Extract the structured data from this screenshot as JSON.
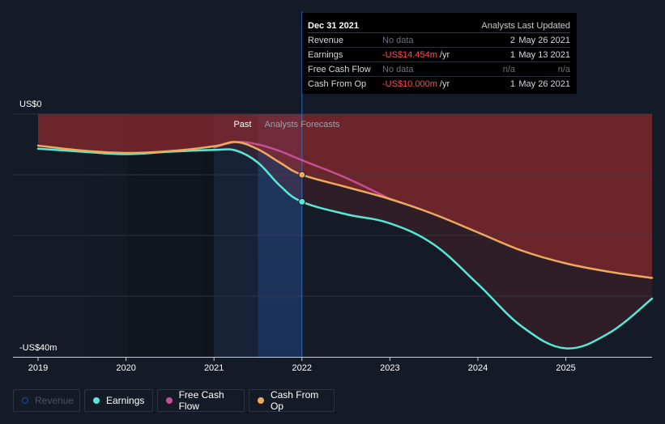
{
  "tooltip": {
    "date": "Dec 31 2021",
    "col_analysts": "Analysts",
    "col_updated": "Last Updated",
    "rows": [
      {
        "metric": "Revenue",
        "value": "No data",
        "unit": "",
        "negative": false,
        "analysts": "2",
        "updated": "May 26 2021"
      },
      {
        "metric": "Earnings",
        "value": "-US$14.454m",
        "unit": " /yr",
        "negative": true,
        "analysts": "1",
        "updated": "May 13 2021"
      },
      {
        "metric": "Free Cash Flow",
        "value": "No data",
        "unit": "",
        "negative": false,
        "analysts": "n/a",
        "updated": "n/a"
      },
      {
        "metric": "Cash From Op",
        "value": "-US$10.000m",
        "unit": " /yr",
        "negative": true,
        "analysts": "1",
        "updated": "May 26 2021"
      }
    ]
  },
  "legend": [
    {
      "label": "Revenue",
      "color": "#2d6cdf",
      "active": false
    },
    {
      "label": "Earnings",
      "color": "#58e8d6",
      "active": true
    },
    {
      "label": "Free Cash Flow",
      "color": "#c44f94",
      "active": true
    },
    {
      "label": "Cash From Op",
      "color": "#eeaa5c",
      "active": true
    }
  ],
  "colors": {
    "earnings": "#58e8d6",
    "free_cash_flow": "#c44f94",
    "cash_from_op": "#eeaa5c",
    "negative_area": "#8b2a2f",
    "past_band": "#1f3a66",
    "axis": "#c9ccd1"
  },
  "chart_data": {
    "type": "line",
    "title": "",
    "xlabel": "",
    "ylabel": "",
    "y_top_label": "US$0",
    "y_bottom_label": "-US$40m",
    "xlim": [
      2019.0,
      2025.98
    ],
    "ylim": [
      -40,
      0
    ],
    "x_ticks": [
      2019,
      2020,
      2021,
      2022,
      2023,
      2024,
      2025
    ],
    "x_tick_labels": [
      "2019",
      "2020",
      "2021",
      "2022",
      "2023",
      "2024",
      "2025"
    ],
    "grid_y": [
      0,
      -10,
      -20,
      -30
    ],
    "past_label": "Past",
    "forecast_label": "Analysts Forecasts",
    "forecast_start": 2021.5,
    "today": 2022.0,
    "series": [
      {
        "name": "Earnings",
        "key": "earnings",
        "x": [
          2019.0,
          2019.5,
          2020.0,
          2020.5,
          2021.0,
          2021.25,
          2021.5,
          2021.75,
          2022.0,
          2022.5,
          2023.0,
          2023.5,
          2024.0,
          2024.5,
          2025.0,
          2025.5,
          2025.98
        ],
        "values": [
          -5.7,
          -6.2,
          -6.6,
          -6.2,
          -5.9,
          -6.0,
          -8.0,
          -11.8,
          -14.45,
          -16.5,
          -18.0,
          -21.5,
          -28.0,
          -35.0,
          -38.6,
          -36.0,
          -30.4
        ],
        "marker_at": 2022.0
      },
      {
        "name": "Free Cash Flow",
        "key": "free_cash_flow",
        "x": [
          2021.0,
          2021.25,
          2021.5,
          2021.75,
          2022.0,
          2022.5,
          2023.0
        ],
        "values": [
          -5.5,
          -4.6,
          -5.0,
          -6.1,
          -7.6,
          -10.5,
          -14.0
        ],
        "marker_at": null
      },
      {
        "name": "Cash From Op",
        "key": "cash_from_op",
        "x": [
          2019.0,
          2019.5,
          2020.0,
          2020.5,
          2021.0,
          2021.25,
          2021.5,
          2021.75,
          2022.0,
          2022.5,
          2023.0,
          2023.5,
          2024.0,
          2024.5,
          2025.0,
          2025.5,
          2025.98
        ],
        "values": [
          -5.2,
          -6.0,
          -6.4,
          -6.1,
          -5.3,
          -4.6,
          -5.8,
          -8.0,
          -10.0,
          -12.0,
          -14.0,
          -16.5,
          -19.5,
          -22.5,
          -24.6,
          -26.0,
          -27.0
        ],
        "marker_at": 2022.0
      }
    ]
  }
}
